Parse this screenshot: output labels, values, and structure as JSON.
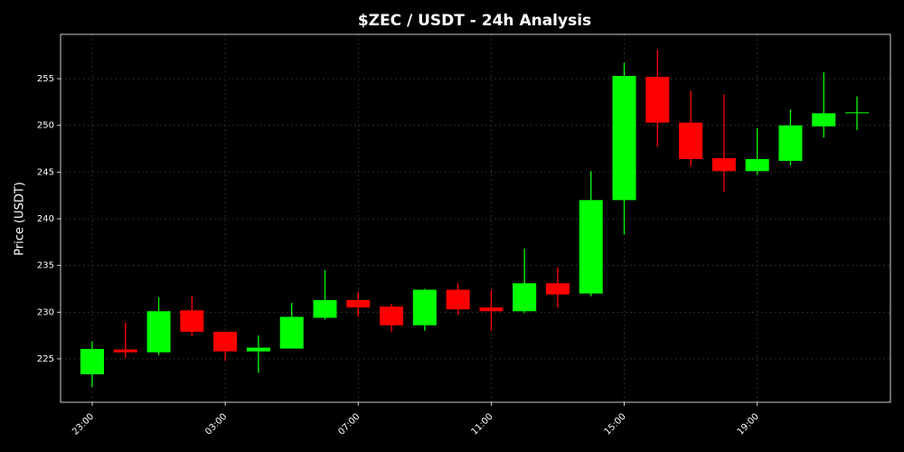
{
  "chart_data": {
    "type": "candlestick",
    "title": "$ZEC / USDT - 24h Analysis",
    "y_label": "Price (USDT)",
    "categories": [
      "23:00",
      null,
      null,
      null,
      "03:00",
      null,
      null,
      null,
      "07:00",
      null,
      null,
      null,
      "11:00",
      null,
      null,
      null,
      "15:00",
      null,
      null,
      null,
      "19:00",
      null,
      null,
      null
    ],
    "open": [
      223.35,
      226.0,
      225.7,
      230.2,
      227.9,
      225.8,
      226.1,
      229.4,
      231.3,
      230.6,
      228.6,
      232.4,
      230.5,
      230.1,
      233.1,
      232.0,
      242.0,
      255.2,
      250.3,
      246.5,
      245.1,
      246.2,
      249.9,
      251.3
    ],
    "high": [
      226.9,
      228.9,
      231.6,
      231.7,
      227.9,
      227.5,
      231.0,
      234.5,
      232.2,
      230.9,
      232.5,
      233.1,
      232.4,
      236.8,
      234.8,
      245.1,
      256.7,
      258.1,
      253.7,
      253.3,
      249.7,
      251.7,
      255.7,
      253.1
    ],
    "low": [
      222.0,
      225.1,
      225.4,
      227.4,
      224.8,
      223.5,
      226.1,
      229.2,
      229.5,
      227.9,
      228.0,
      229.7,
      228.0,
      229.9,
      230.5,
      231.7,
      238.3,
      247.7,
      245.6,
      242.9,
      244.7,
      245.7,
      248.7,
      249.5
    ],
    "close": [
      226.06,
      225.7,
      230.1,
      227.9,
      225.8,
      226.2,
      229.5,
      231.3,
      230.5,
      228.6,
      232.4,
      230.3,
      230.1,
      233.1,
      231.9,
      242.0,
      255.3,
      250.3,
      246.4,
      245.1,
      246.4,
      250.0,
      251.3,
      251.4
    ],
    "up_color": "#00ff00",
    "down_color": "#ff0000",
    "ylim": [
      220.35,
      259.75
    ],
    "yticks": [
      225,
      230,
      235,
      240,
      245,
      250,
      255
    ],
    "grid": true
  }
}
